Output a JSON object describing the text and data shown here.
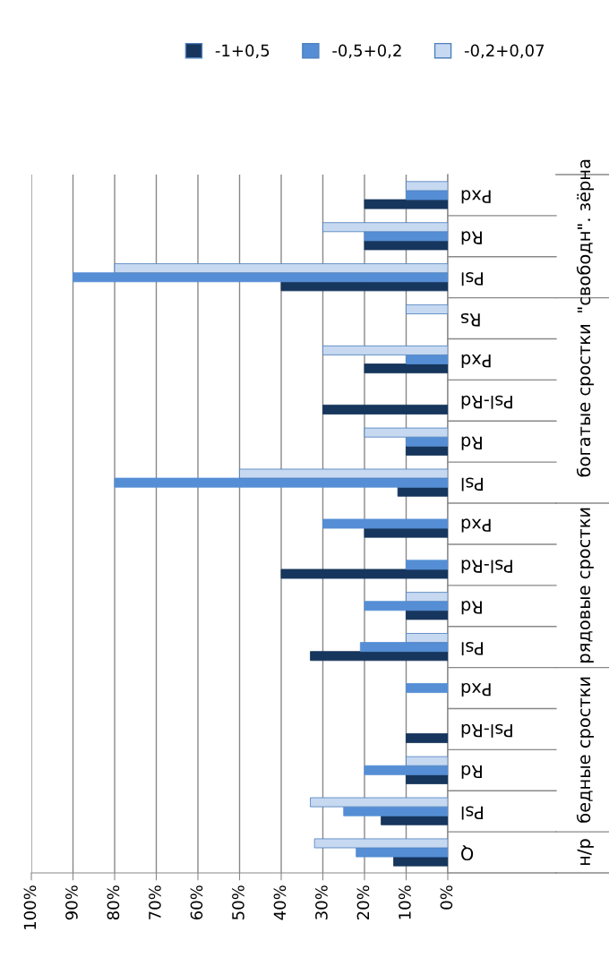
{
  "chart_data": {
    "type": "bar",
    "orientation": "horizontal",
    "categories": [
      "Pxd",
      "Rd",
      "Psl",
      "Rs",
      "Pxd",
      "Psl-Rd",
      "Rd",
      "Psl",
      "Pxd",
      "Psl-Rd",
      "Rd",
      "Psl",
      "Pxd",
      "Psl-Rd",
      "Rd",
      "Psl",
      "Q"
    ],
    "series": [
      {
        "name": "-1+0,5",
        "color": "#17365d",
        "values": [
          20,
          20,
          40,
          null,
          20,
          30,
          10,
          12,
          20,
          40,
          10,
          33,
          null,
          10,
          10,
          16,
          13
        ]
      },
      {
        "name": "-0,5+0,2",
        "color": "#558ed5",
        "values": [
          10,
          20,
          90,
          null,
          10,
          null,
          10,
          80,
          30,
          10,
          20,
          21,
          10,
          null,
          20,
          25,
          22
        ]
      },
      {
        "name": "-0,2+0,07",
        "color": "#c6d9f1",
        "values": [
          10,
          30,
          80,
          10,
          30,
          null,
          20,
          50,
          null,
          null,
          10,
          10,
          null,
          null,
          10,
          33,
          32
        ]
      }
    ],
    "annotations": [
      "\"свободн\". зёрна",
      "богатые сростки",
      "рядовые сростки",
      "бедные сростки",
      "н/р"
    ],
    "xlim": [
      100,
      0
    ],
    "xticks": [
      {
        "value": 100,
        "label": "100%"
      },
      {
        "value": 90,
        "label": "90%"
      },
      {
        "value": 80,
        "label": "80%"
      },
      {
        "value": 70,
        "label": "70%"
      },
      {
        "value": 60,
        "label": "60%"
      },
      {
        "value": 50,
        "label": "50%"
      },
      {
        "value": 40,
        "label": "40%"
      },
      {
        "value": 30,
        "label": "30%"
      },
      {
        "value": 20,
        "label": "20%"
      },
      {
        "value": 10,
        "label": "10%"
      },
      {
        "value": 0,
        "label": "0%"
      }
    ],
    "grid": "x",
    "legend": "top"
  }
}
